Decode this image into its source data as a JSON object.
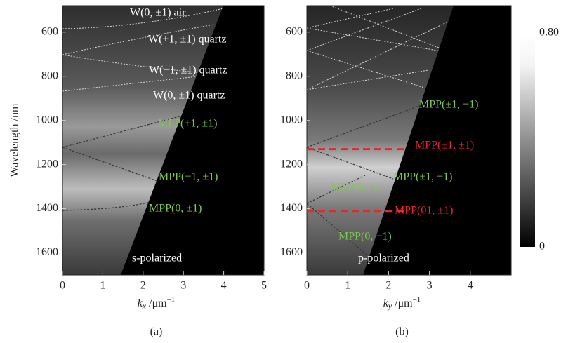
{
  "chart_data": [
    {
      "type": "heatmap",
      "caption": "(a)",
      "ylabel": "Wavelength /nm",
      "xlabel": {
        "symbol": "k",
        "subscript": "x",
        "unit": " /μm",
        "exponent": "−1"
      },
      "xlim": [
        0,
        5
      ],
      "xticks": [
        0,
        1,
        2,
        3,
        4,
        5
      ],
      "ylim": [
        1700,
        480
      ],
      "yticks": [
        600,
        800,
        1000,
        1200,
        1400,
        1600
      ],
      "annotations": [
        {
          "text": "W(0, ±1) air",
          "color": "#ffffff"
        },
        {
          "text": "W(+1, ±1) quartz",
          "color": "#ffffff"
        },
        {
          "text": "W(−1, ±1) quartz",
          "color": "#ffffff"
        },
        {
          "text": "W(0, ±1) quartz",
          "color": "#ffffff"
        },
        {
          "text": "MPP(+1, ±1)",
          "color": "#7ec850"
        },
        {
          "text": "MPP(−1, ±1)",
          "color": "#7ec850"
        },
        {
          "text": "MPP(0, ±1)",
          "color": "#7ec850"
        },
        {
          "text": "s-polarized",
          "color": "#ffffff"
        }
      ]
    },
    {
      "type": "heatmap",
      "caption": "(b)",
      "xlabel": {
        "symbol": "k",
        "subscript": "y",
        "unit": " /μm",
        "exponent": "−1"
      },
      "xlim": [
        0,
        5
      ],
      "xticks": [
        0,
        1,
        2,
        3,
        4
      ],
      "ylim": [
        1700,
        480
      ],
      "yticks": [
        600,
        800,
        1000,
        1200,
        1400,
        1600
      ],
      "reference_lines": {
        "color": "#e8262b",
        "values": [
          1130,
          1410
        ]
      },
      "annotations": [
        {
          "text": "MPP(±1, +1)",
          "color": "#7ec850"
        },
        {
          "text": "MPP(±1, ±1)",
          "color": "#e8262b"
        },
        {
          "text": "MPP(±1, −1)",
          "color": "#7ec850"
        },
        {
          "text": "MPP(0, +1)",
          "color": "#7ec850"
        },
        {
          "text": "MPP(01, ±1)",
          "color": "#e8262b"
        },
        {
          "text": "MPP(0, −1)",
          "color": "#7ec850"
        },
        {
          "text": "p-polarized",
          "color": "#ffffff"
        }
      ],
      "colorbar": {
        "zlim": [
          0,
          0.8
        ],
        "ticks": [
          0,
          {
            "value": 0.8,
            "label": "0.80"
          }
        ]
      }
    }
  ]
}
